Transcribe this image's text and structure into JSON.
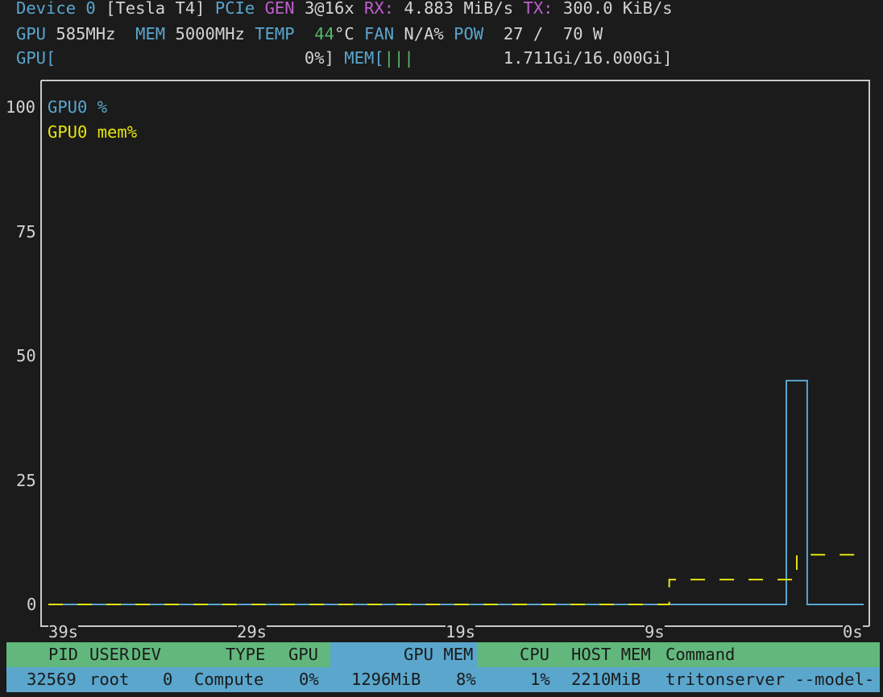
{
  "header": {
    "line1": [
      {
        "text": "Device 0",
        "c": "b"
      },
      {
        "text": " [Tesla T4] ",
        "c": "w"
      },
      {
        "text": "PCIe ",
        "c": "b"
      },
      {
        "text": "GEN ",
        "c": "m"
      },
      {
        "text": "3@16x ",
        "c": "w"
      },
      {
        "text": "RX: ",
        "c": "m"
      },
      {
        "text": "4.883 MiB/s ",
        "c": "w"
      },
      {
        "text": "TX: ",
        "c": "m"
      },
      {
        "text": "300.0 KiB/s",
        "c": "w"
      }
    ],
    "line2": [
      {
        "text": "GPU",
        "c": "b"
      },
      {
        "text": " 585MHz  ",
        "c": "w"
      },
      {
        "text": "MEM",
        "c": "b"
      },
      {
        "text": " 5000MHz ",
        "c": "w"
      },
      {
        "text": "TEMP",
        "c": "b"
      },
      {
        "text": "  44",
        "c": "g"
      },
      {
        "text": "°C ",
        "c": "w"
      },
      {
        "text": "FAN",
        "c": "b"
      },
      {
        "text": " N/A% ",
        "c": "w"
      },
      {
        "text": "POW",
        "c": "b"
      },
      {
        "text": "  27 /  70 W",
        "c": "w"
      }
    ],
    "line3": [
      {
        "text": "GPU[",
        "c": "b"
      },
      {
        "text": "                         0%] ",
        "c": "w"
      },
      {
        "text": "MEM[",
        "c": "b"
      },
      {
        "text": "|||",
        "c": "g"
      },
      {
        "text": "         1.711Gi/16.000Gi]",
        "c": "w"
      }
    ]
  },
  "colors": {
    "gpu": "#5aa6cf",
    "mem": "#e5e510",
    "header_green": "#62b87c",
    "header_blue": "#5aa6cc",
    "background": "#1b1b1b"
  },
  "chart_data": {
    "type": "line",
    "y_ticks": [
      "100",
      "75",
      "50",
      "25",
      "0"
    ],
    "x_ticks": [
      "39s",
      "29s",
      "19s",
      "9s",
      "0s"
    ],
    "ylim": [
      0,
      100
    ],
    "xlim": [
      39,
      0
    ],
    "legend_placement": "top-left",
    "series": [
      {
        "name": "GPU0 %",
        "color": "#5aa6cf",
        "points": [
          [
            39,
            0
          ],
          [
            3.7,
            0
          ],
          [
            3.7,
            45
          ],
          [
            2.7,
            45
          ],
          [
            2.7,
            0
          ],
          [
            0,
            0
          ]
        ]
      },
      {
        "name": "GPU0 mem%",
        "color": "#e5e510",
        "points": [
          [
            39,
            0
          ],
          [
            9.3,
            0
          ],
          [
            9.3,
            5
          ],
          [
            3.2,
            5
          ],
          [
            3.2,
            10
          ],
          [
            0,
            10
          ]
        ]
      }
    ]
  },
  "table": {
    "headers": [
      "PID",
      "USER",
      "DEV",
      "TYPE",
      "GPU",
      "GPU MEM",
      "CPU",
      "HOST MEM",
      "Command"
    ],
    "rows": [
      [
        "32569",
        "root",
        "0",
        "Compute",
        "0%",
        "1296MiB",
        "8%",
        "1%",
        "2210MiB",
        "tritonserver --model-"
      ]
    ]
  }
}
